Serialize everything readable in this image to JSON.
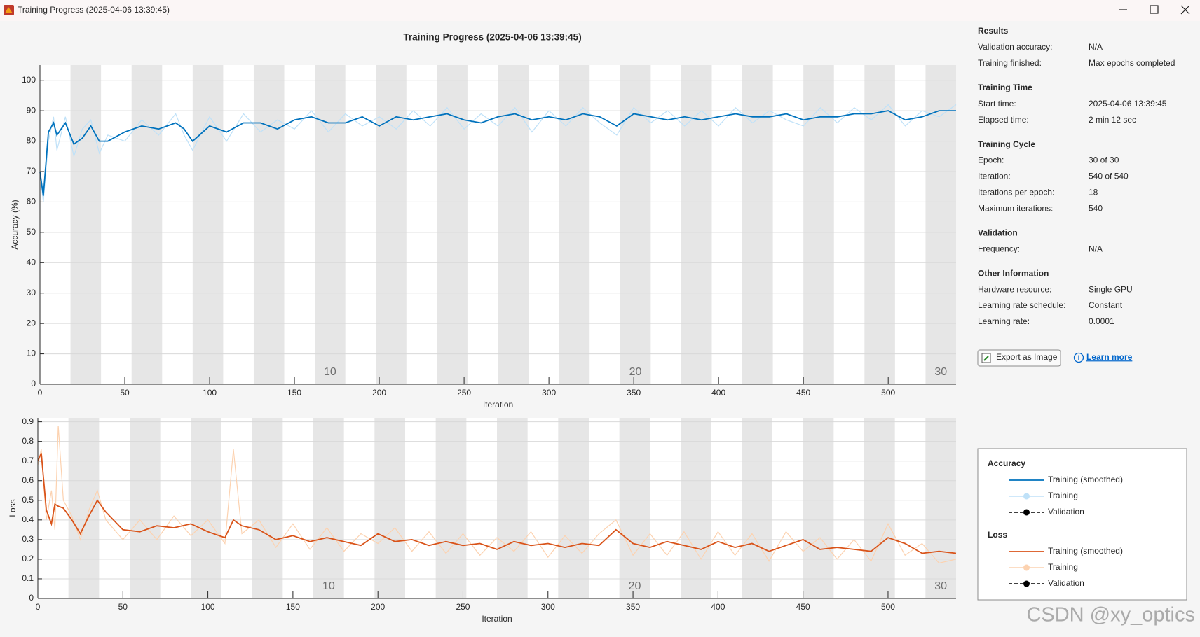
{
  "window": {
    "title": "Training Progress (2025-04-06 13:39:45)"
  },
  "chart_data": [
    {
      "type": "line",
      "title": "Training Progress (2025-04-06 13:39:45)",
      "xlabel": "Iteration",
      "ylabel": "Accuracy (%)",
      "legend_title": "Accuracy",
      "xlim": [
        0,
        540
      ],
      "ylim": [
        0,
        105
      ],
      "xticks": [
        0,
        50,
        100,
        150,
        200,
        250,
        300,
        350,
        400,
        450,
        500
      ],
      "yticks": [
        0,
        10,
        20,
        30,
        40,
        50,
        60,
        70,
        80,
        90,
        100
      ],
      "grid": true,
      "epoch_length": 18,
      "epoch_labels": [
        10,
        20,
        30
      ],
      "series": [
        {
          "name": "Training (smoothed)",
          "color": "#0072bd",
          "x": [
            0,
            2,
            5,
            8,
            10,
            15,
            20,
            25,
            30,
            35,
            40,
            50,
            60,
            70,
            80,
            85,
            90,
            100,
            110,
            120,
            130,
            140,
            150,
            160,
            170,
            180,
            190,
            200,
            210,
            220,
            230,
            240,
            250,
            260,
            270,
            280,
            290,
            300,
            310,
            320,
            330,
            340,
            350,
            360,
            370,
            380,
            390,
            400,
            410,
            420,
            430,
            440,
            450,
            460,
            470,
            480,
            490,
            500,
            510,
            520,
            530,
            540
          ],
          "values": [
            70,
            62,
            83,
            86,
            82,
            86,
            79,
            81,
            85,
            80,
            80,
            83,
            85,
            84,
            86,
            84,
            80,
            85,
            83,
            86,
            86,
            84,
            87,
            88,
            86,
            86,
            88,
            85,
            88,
            87,
            88,
            89,
            87,
            86,
            88,
            89,
            87,
            88,
            87,
            89,
            88,
            85,
            89,
            88,
            87,
            88,
            87,
            88,
            89,
            88,
            88,
            89,
            87,
            88,
            88,
            89,
            89,
            90,
            87,
            88,
            90,
            90
          ]
        },
        {
          "name": "Training",
          "color": "#bfe1f8",
          "marker": true,
          "x": [
            0,
            2,
            5,
            8,
            10,
            15,
            20,
            25,
            30,
            35,
            40,
            50,
            60,
            70,
            80,
            85,
            90,
            100,
            110,
            120,
            130,
            140,
            150,
            160,
            170,
            180,
            190,
            200,
            210,
            220,
            230,
            240,
            250,
            260,
            270,
            280,
            290,
            300,
            310,
            320,
            330,
            340,
            350,
            360,
            370,
            380,
            390,
            400,
            410,
            420,
            430,
            440,
            450,
            460,
            470,
            480,
            490,
            500,
            510,
            520,
            530,
            540
          ],
          "values": [
            70,
            60,
            80,
            88,
            77,
            88,
            75,
            84,
            87,
            76,
            82,
            80,
            87,
            82,
            89,
            82,
            77,
            88,
            80,
            89,
            83,
            87,
            84,
            90,
            83,
            89,
            85,
            88,
            84,
            90,
            85,
            91,
            84,
            89,
            85,
            91,
            83,
            90,
            85,
            91,
            86,
            82,
            91,
            86,
            90,
            85,
            90,
            85,
            91,
            86,
            90,
            87,
            85,
            91,
            86,
            91,
            87,
            92,
            85,
            90,
            88,
            92
          ]
        },
        {
          "name": "Validation",
          "color": "#000000",
          "dashed": true,
          "marker": true,
          "x": [],
          "values": []
        }
      ]
    },
    {
      "type": "line",
      "xlabel": "Iteration",
      "ylabel": "Loss",
      "legend_title": "Loss",
      "xlim": [
        0,
        540
      ],
      "ylim": [
        0,
        0.92
      ],
      "xticks": [
        0,
        50,
        100,
        150,
        200,
        250,
        300,
        350,
        400,
        450,
        500
      ],
      "yticks": [
        0,
        0.1,
        0.2,
        0.3,
        0.4,
        0.5,
        0.6,
        0.7,
        0.8,
        0.9
      ],
      "grid": true,
      "epoch_length": 18,
      "epoch_labels": [
        10,
        20,
        30
      ],
      "series": [
        {
          "name": "Training (smoothed)",
          "color": "#d95319",
          "x": [
            0,
            2,
            5,
            8,
            10,
            12,
            15,
            20,
            25,
            30,
            35,
            40,
            50,
            60,
            70,
            80,
            90,
            100,
            110,
            115,
            120,
            130,
            140,
            150,
            160,
            170,
            180,
            190,
            200,
            210,
            220,
            230,
            240,
            250,
            260,
            270,
            280,
            290,
            300,
            310,
            320,
            330,
            340,
            350,
            360,
            370,
            380,
            390,
            400,
            410,
            420,
            430,
            440,
            450,
            460,
            470,
            480,
            490,
            500,
            510,
            520,
            530,
            540
          ],
          "values": [
            0.7,
            0.74,
            0.45,
            0.38,
            0.48,
            0.47,
            0.46,
            0.4,
            0.33,
            0.42,
            0.5,
            0.44,
            0.35,
            0.34,
            0.37,
            0.36,
            0.38,
            0.34,
            0.31,
            0.4,
            0.37,
            0.35,
            0.3,
            0.32,
            0.29,
            0.31,
            0.29,
            0.27,
            0.33,
            0.29,
            0.3,
            0.27,
            0.29,
            0.27,
            0.28,
            0.25,
            0.29,
            0.27,
            0.28,
            0.26,
            0.28,
            0.27,
            0.35,
            0.28,
            0.26,
            0.29,
            0.27,
            0.25,
            0.29,
            0.26,
            0.28,
            0.24,
            0.27,
            0.3,
            0.25,
            0.26,
            0.25,
            0.24,
            0.31,
            0.28,
            0.23,
            0.24,
            0.23
          ]
        },
        {
          "name": "Training",
          "color": "#fcd2b0",
          "marker": true,
          "x": [
            0,
            2,
            5,
            8,
            10,
            12,
            15,
            20,
            25,
            30,
            35,
            40,
            50,
            60,
            70,
            80,
            90,
            100,
            110,
            115,
            120,
            130,
            140,
            150,
            160,
            170,
            180,
            190,
            200,
            210,
            220,
            230,
            240,
            250,
            260,
            270,
            280,
            290,
            300,
            310,
            320,
            330,
            340,
            350,
            360,
            370,
            380,
            390,
            400,
            410,
            420,
            430,
            440,
            450,
            460,
            470,
            480,
            490,
            500,
            510,
            520,
            530,
            540
          ],
          "values": [
            0.68,
            0.76,
            0.4,
            0.55,
            0.35,
            0.88,
            0.5,
            0.42,
            0.3,
            0.45,
            0.55,
            0.4,
            0.3,
            0.4,
            0.3,
            0.42,
            0.32,
            0.4,
            0.28,
            0.76,
            0.33,
            0.4,
            0.26,
            0.38,
            0.25,
            0.36,
            0.24,
            0.33,
            0.28,
            0.36,
            0.24,
            0.34,
            0.23,
            0.33,
            0.22,
            0.31,
            0.24,
            0.34,
            0.21,
            0.32,
            0.23,
            0.33,
            0.4,
            0.22,
            0.33,
            0.22,
            0.34,
            0.2,
            0.34,
            0.22,
            0.33,
            0.19,
            0.34,
            0.24,
            0.31,
            0.2,
            0.3,
            0.19,
            0.38,
            0.22,
            0.28,
            0.18,
            0.2
          ]
        },
        {
          "name": "Validation",
          "color": "#000000",
          "dashed": true,
          "marker": true,
          "x": [],
          "values": []
        }
      ]
    }
  ],
  "info": [
    {
      "title": "Results",
      "rows": [
        [
          "Validation accuracy:",
          "N/A"
        ],
        [
          "Training finished:",
          "Max epochs completed"
        ]
      ]
    },
    {
      "title": "Training Time",
      "rows": [
        [
          "Start time:",
          "2025-04-06 13:39:45"
        ],
        [
          "Elapsed time:",
          "2 min 12 sec"
        ]
      ]
    },
    {
      "title": "Training Cycle",
      "rows": [
        [
          "Epoch:",
          "30 of 30"
        ],
        [
          "Iteration:",
          "540 of 540"
        ],
        [
          "Iterations per epoch:",
          "18"
        ],
        [
          "Maximum iterations:",
          "540"
        ]
      ]
    },
    {
      "title": "Validation",
      "rows": [
        [
          "Frequency:",
          "N/A"
        ]
      ]
    },
    {
      "title": "Other Information",
      "rows": [
        [
          "Hardware resource:",
          "Single GPU"
        ],
        [
          "Learning rate schedule:",
          "Constant"
        ],
        [
          "Learning rate:",
          "0.0001"
        ]
      ]
    }
  ],
  "buttons": {
    "export": "Export as Image",
    "learn_more": "Learn more"
  },
  "watermark": "CSDN @xy_optics"
}
